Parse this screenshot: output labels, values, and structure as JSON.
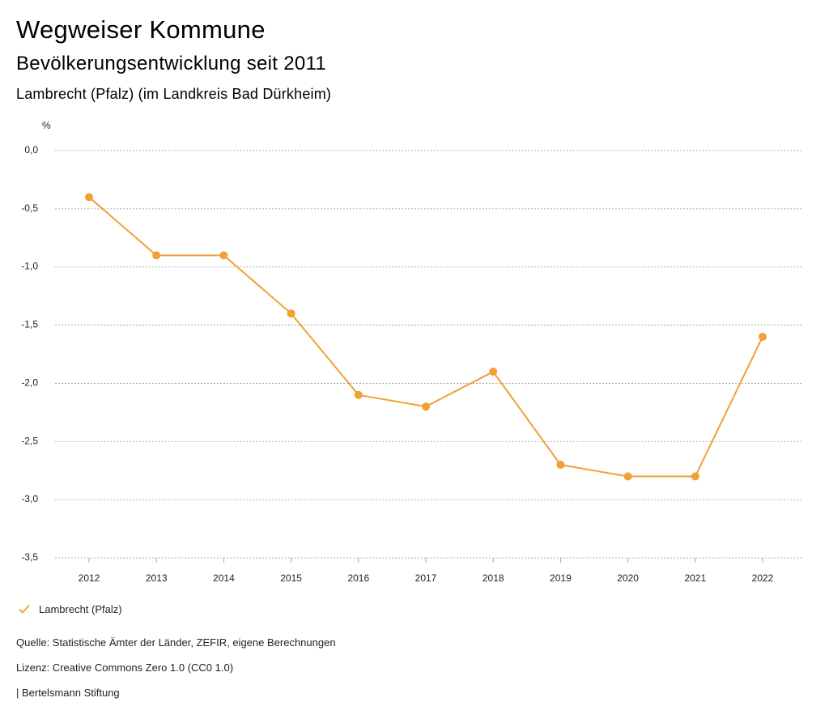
{
  "header": {
    "title": "Wegweiser Kommune",
    "subtitle": "Bevölkerungsentwicklung seit 2011",
    "region": "Lambrecht (Pfalz) (im Landkreis Bad Dürkheim)"
  },
  "chart_data": {
    "type": "line",
    "ylabel": "%",
    "xlabel": "",
    "ylim": [
      -3.5,
      0.0
    ],
    "yticks": [
      "0,0",
      "-0,5",
      "-1,0",
      "-1,5",
      "-2,0",
      "-2,5",
      "-3,0",
      "-3,5"
    ],
    "ytick_values": [
      0.0,
      -0.5,
      -1.0,
      -1.5,
      -2.0,
      -2.5,
      -3.0,
      -3.5
    ],
    "categories": [
      "2012",
      "2013",
      "2014",
      "2015",
      "2016",
      "2017",
      "2018",
      "2019",
      "2020",
      "2021",
      "2022"
    ],
    "series": [
      {
        "name": "Lambrecht (Pfalz)",
        "color": "#f0a035",
        "values": [
          -0.4,
          -0.9,
          -0.9,
          -1.4,
          -2.1,
          -2.2,
          -1.9,
          -2.7,
          -2.8,
          -2.8,
          -1.6
        ]
      }
    ],
    "grid": true,
    "legend": "bottom-left"
  },
  "legend": {
    "label": "Lambrecht (Pfalz)",
    "icon": "check-icon"
  },
  "footer": {
    "source": "Quelle: Statistische Ämter der Länder, ZEFIR, eigene Berechnungen",
    "license": "Lizenz: Creative Commons Zero 1.0 (CC0 1.0)",
    "publisher": "| Bertelsmann Stiftung"
  }
}
